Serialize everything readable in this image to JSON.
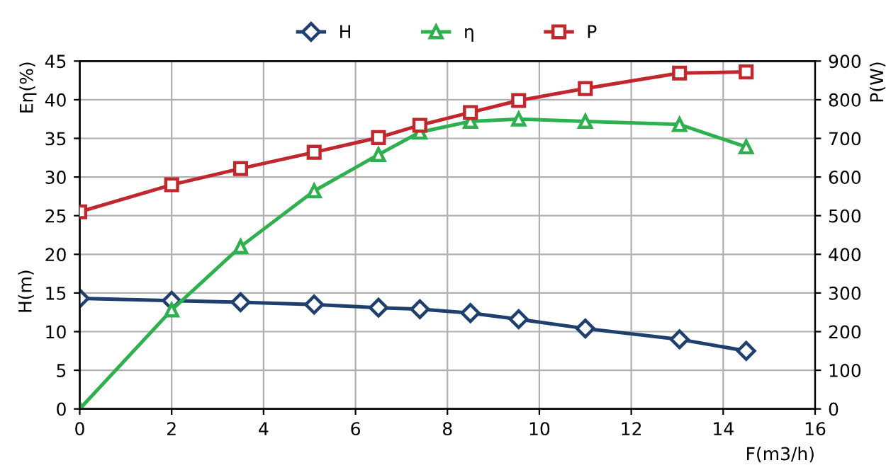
{
  "chart_data": {
    "type": "line",
    "xlabel": "F(m3/h)",
    "ylabel": "Eη(%)",
    "y2label": "P(W)",
    "annotations": [
      "H(m)"
    ],
    "x": [
      0,
      2,
      3.5,
      5.1,
      6.5,
      7.4,
      8.5,
      9.55,
      11,
      13.05,
      14.5
    ],
    "series": [
      {
        "name": "H",
        "color": "#1f3f6e",
        "marker": "diamond",
        "values": [
          14.3,
          14.0,
          13.8,
          13.5,
          13.1,
          12.9,
          12.4,
          11.6,
          10.4,
          9.0,
          7.5
        ]
      },
      {
        "name": "η",
        "color": "#2eb04f",
        "marker": "triangle",
        "values": [
          0,
          12.8,
          21,
          28.2,
          32.9,
          35.8,
          37.2,
          37.5,
          37.2,
          36.8,
          33.9
        ]
      },
      {
        "name": "P",
        "color": "#c0282d",
        "marker": "square",
        "axis": "y2",
        "values": [
          510,
          580,
          622,
          664,
          702,
          734,
          767,
          798,
          829,
          869,
          872
        ]
      }
    ],
    "xlim": [
      0,
      16
    ],
    "xticks": [
      0,
      2,
      4,
      6,
      8,
      10,
      12,
      14,
      16
    ],
    "ylim": [
      0,
      45
    ],
    "yticks": [
      0,
      5,
      10,
      15,
      20,
      25,
      30,
      35,
      40,
      45
    ],
    "y2lim": [
      0,
      900
    ],
    "y2ticks": [
      0,
      100,
      200,
      300,
      400,
      500,
      600,
      700,
      800,
      900
    ],
    "grid": true,
    "legend": "top"
  }
}
